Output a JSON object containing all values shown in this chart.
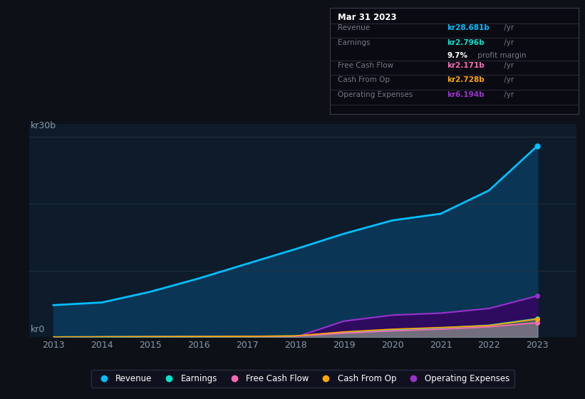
{
  "background_color": "#0d1117",
  "plot_bg_color": "#0d1b2a",
  "years": [
    2013,
    2014,
    2015,
    2016,
    2017,
    2018,
    2019,
    2020,
    2021,
    2022,
    2023
  ],
  "revenue": [
    4.8,
    5.2,
    6.8,
    8.8,
    11.0,
    13.2,
    15.5,
    17.5,
    18.5,
    22.0,
    28.681
  ],
  "earnings": [
    0.05,
    0.07,
    0.09,
    0.11,
    0.13,
    0.18,
    0.7,
    1.1,
    1.4,
    1.8,
    2.796
  ],
  "fcf": [
    0.03,
    0.05,
    0.07,
    0.09,
    0.11,
    0.15,
    0.6,
    0.95,
    1.2,
    1.55,
    2.171
  ],
  "cash_from_op": [
    0.04,
    0.06,
    0.08,
    0.1,
    0.13,
    0.2,
    0.8,
    1.2,
    1.45,
    1.75,
    2.728
  ],
  "op_expenses": [
    0.0,
    0.0,
    0.0,
    0.0,
    0.0,
    0.0,
    2.4,
    3.3,
    3.6,
    4.3,
    6.194
  ],
  "revenue_color": "#00bfff",
  "earnings_color": "#00e5cc",
  "fcf_color": "#ff69b4",
  "cash_from_op_color": "#ffa500",
  "op_expenses_color": "#9932cc",
  "revenue_fill": "#0a3555",
  "op_expenses_fill": "#2e0b5f",
  "ylabel_top": "kr30b",
  "ylabel_bottom": "kr0",
  "ylim": [
    0,
    32
  ],
  "xlim": [
    2012.5,
    2023.8
  ],
  "yticks": [
    0,
    10,
    20,
    30
  ],
  "grid_color": "#253545",
  "axis_label_color": "#8899aa",
  "tick_label_color": "#8899aa",
  "legend_labels": [
    "Revenue",
    "Earnings",
    "Free Cash Flow",
    "Cash From Op",
    "Operating Expenses"
  ],
  "info_box": {
    "date": "Mar 31 2023",
    "revenue_val": "kr28.681b",
    "revenue_color": "#00bfff",
    "earnings_val": "kr2.796b",
    "earnings_color": "#00e5cc",
    "profit_margin": "9.7%",
    "fcf_val": "kr2.171b",
    "fcf_color": "#ff69b4",
    "cash_val": "kr2.728b",
    "cash_color": "#ffa500",
    "op_val": "kr6.194b",
    "op_color": "#9932cc",
    "box_bg": "#0a0a12",
    "box_border": "#3a3a4a",
    "label_color": "#777788",
    "white": "#ffffff"
  }
}
